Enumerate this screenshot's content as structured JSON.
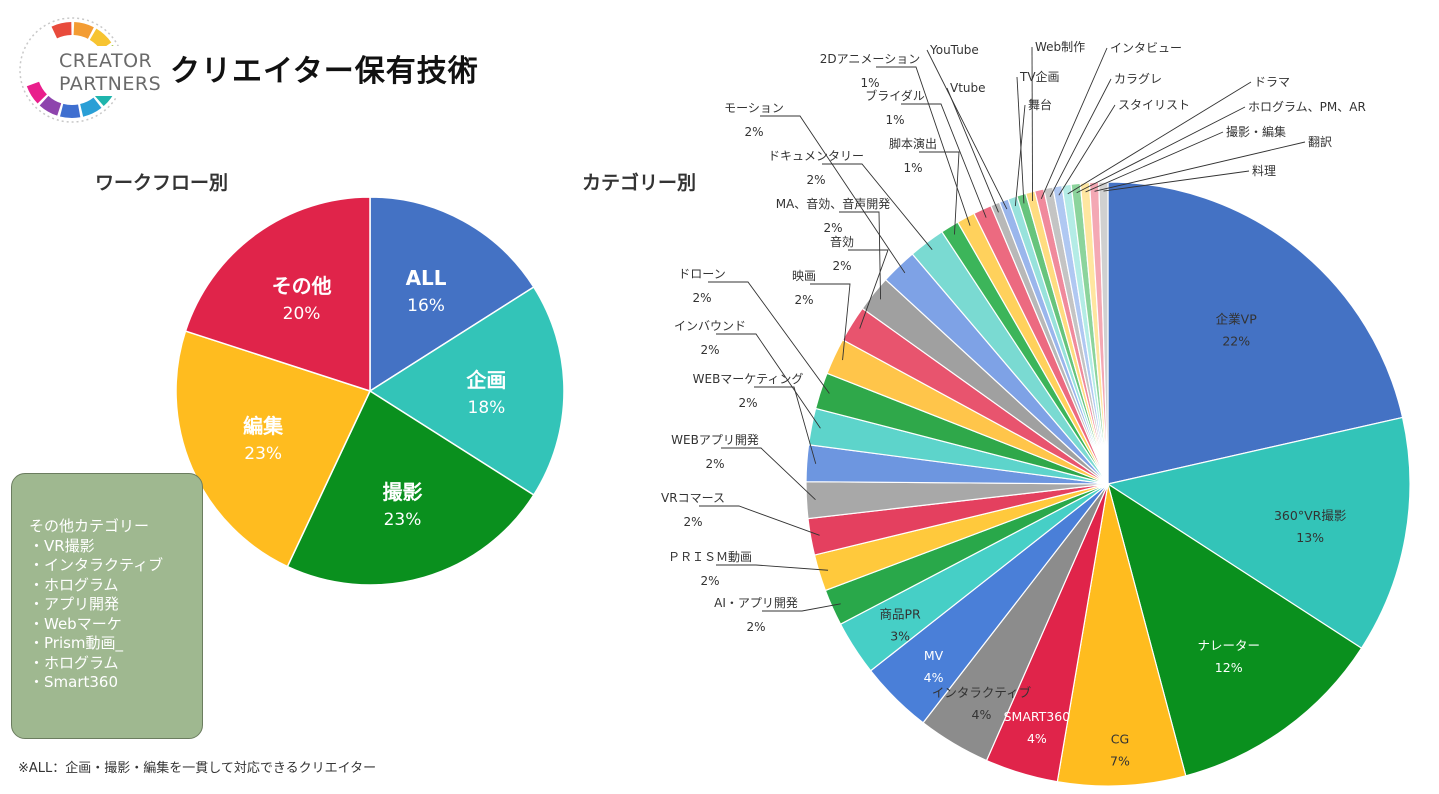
{
  "header": {
    "logo_line1": "CREATOR",
    "logo_line2": "PARTNERS",
    "title": "クリエイター保有技術"
  },
  "footnote": "※ALL：企画・撮影・編集を一貫して対応できるクリエイター",
  "other_box": {
    "title": "その他カテゴリー",
    "items": [
      "・VR撮影",
      "・インタラクティブ",
      "・ホログラム",
      "・アプリ開発",
      "・Webマーケ",
      "・Prism動画_",
      "・ホログラム",
      "・Smart360"
    ]
  },
  "logo_colors": [
    "#e84b3c",
    "#f39c33",
    "#f7c431",
    "#a4c639",
    "#39b54a",
    "#1fb5ad",
    "#2a9fd6",
    "#3f6fd0",
    "#8e44ad",
    "#e91e8c"
  ],
  "chart_data": [
    {
      "type": "pie",
      "title": "ワークフロー別",
      "slices": [
        {
          "label": "ALL",
          "pct_label": "16%",
          "value": 16,
          "color": "#4472c4"
        },
        {
          "label": "企画",
          "pct_label": "18%",
          "value": 18,
          "color": "#33c4b8"
        },
        {
          "label": "撮影",
          "pct_label": "23%",
          "value": 23,
          "color": "#0a901e"
        },
        {
          "label": "編集",
          "pct_label": "23%",
          "value": 23,
          "color": "#ffbc1f"
        },
        {
          "label": "その他",
          "pct_label": "20%",
          "value": 20,
          "color": "#e0244a"
        }
      ]
    },
    {
      "type": "pie",
      "title": "カテゴリー別",
      "slices": [
        {
          "label": "企業VP",
          "pct_label": "22%",
          "value": 22,
          "color": "#4472c4"
        },
        {
          "label": "360°VR撮影",
          "pct_label": "13%",
          "value": 13,
          "color": "#33c4b8"
        },
        {
          "label": "ナレーター",
          "pct_label": "12%",
          "value": 12,
          "color": "#0a901e"
        },
        {
          "label": "CG",
          "pct_label": "7%",
          "value": 7,
          "color": "#ffbc1f"
        },
        {
          "label": "SMART360",
          "pct_label": "4%",
          "value": 4,
          "color": "#e0244a"
        },
        {
          "label": "インタラクティブ",
          "pct_label": "4%",
          "value": 4,
          "color": "#8c8c8c"
        },
        {
          "label": "MV",
          "pct_label": "4%",
          "value": 4,
          "color": "#4a7fd8"
        },
        {
          "label": "商品PR",
          "pct_label": "3%",
          "value": 3,
          "color": "#46cfc6"
        },
        {
          "label": "AI・アプリ開発",
          "pct_label": "2%",
          "value": 2,
          "color": "#29a84a"
        },
        {
          "label": "ＰＲＩＳＭ動画",
          "pct_label": "2%",
          "value": 2,
          "color": "#ffc93c"
        },
        {
          "label": "VRコマース",
          "pct_label": "2%",
          "value": 2,
          "color": "#e4405f"
        },
        {
          "label": "WEBアプリ開発",
          "pct_label": "2%",
          "value": 2,
          "color": "#a8a8a8"
        },
        {
          "label": "WEBマーケティング",
          "pct_label": "2%",
          "value": 2,
          "color": "#6d96e0"
        },
        {
          "label": "インバウンド",
          "pct_label": "2%",
          "value": 2,
          "color": "#5dd4cb"
        },
        {
          "label": "ドローン",
          "pct_label": "2%",
          "value": 2,
          "color": "#2fa84a"
        },
        {
          "label": "映画",
          "pct_label": "2%",
          "value": 2,
          "color": "#ffc54a"
        },
        {
          "label": "音効",
          "pct_label": "2%",
          "value": 2,
          "color": "#e8546e"
        },
        {
          "label": "MA、音効、音声開発",
          "pct_label": "2%",
          "value": 2,
          "color": "#a0a0a0"
        },
        {
          "label": "モーション",
          "pct_label": "2%",
          "value": 2,
          "color": "#7ea2e6"
        },
        {
          "label": "ドキュメンタリー",
          "pct_label": "2%",
          "value": 2,
          "color": "#7adad2"
        },
        {
          "label": "脚本演出",
          "pct_label": "1%",
          "value": 1,
          "color": "#3cb55a"
        },
        {
          "label": "2Dアニメーション",
          "pct_label": "1%",
          "value": 1,
          "color": "#ffd15c"
        },
        {
          "label": "ブライダル",
          "pct_label": "1%",
          "value": 1,
          "color": "#ec6a80"
        },
        {
          "label": "Vtube",
          "pct_label": "",
          "value": 0.5,
          "color": "#b8b8b8"
        },
        {
          "label": "YouTube",
          "pct_label": "",
          "value": 0.5,
          "color": "#9ab6ec"
        },
        {
          "label": "舞台",
          "pct_label": "",
          "value": 0.5,
          "color": "#98e2dc"
        },
        {
          "label": "TV企画",
          "pct_label": "",
          "value": 0.5,
          "color": "#66c47c"
        },
        {
          "label": "Web制作",
          "pct_label": "",
          "value": 0.5,
          "color": "#ffdc80"
        },
        {
          "label": "インタビュー",
          "pct_label": "",
          "value": 0.5,
          "color": "#f08a9c"
        },
        {
          "label": "カラグレ",
          "pct_label": "",
          "value": 0.5,
          "color": "#c4c4c4"
        },
        {
          "label": "スタイリスト",
          "pct_label": "",
          "value": 0.5,
          "color": "#b0c8f2"
        },
        {
          "label": "ドラマ",
          "pct_label": "",
          "value": 0.5,
          "color": "#b4ece6"
        },
        {
          "label": "ホログラム、PM、AR",
          "pct_label": "",
          "value": 0.5,
          "color": "#8cd49c"
        },
        {
          "label": "撮影・編集",
          "pct_label": "",
          "value": 0.5,
          "color": "#ffe6a0"
        },
        {
          "label": "翻訳",
          "pct_label": "",
          "value": 0.5,
          "color": "#f4a8b4"
        },
        {
          "label": "料理",
          "pct_label": "",
          "value": 0.5,
          "color": "#d0d0d0"
        }
      ]
    }
  ]
}
